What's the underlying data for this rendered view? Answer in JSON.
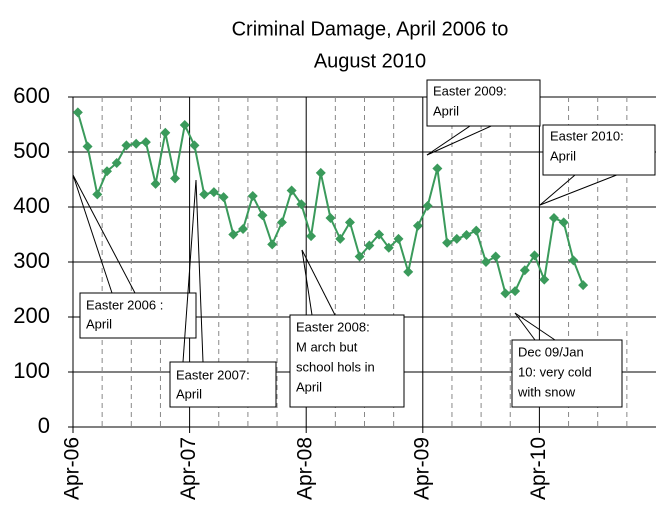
{
  "chart_data": {
    "type": "line",
    "title": [
      "Criminal Damage, April 2006 to",
      "August 2010"
    ],
    "categories": [
      "Apr-06",
      null,
      null,
      null,
      null,
      null,
      null,
      null,
      null,
      null,
      null,
      null,
      "Apr-07",
      null,
      null,
      null,
      null,
      null,
      null,
      null,
      null,
      null,
      null,
      null,
      "Apr-08",
      null,
      null,
      null,
      null,
      null,
      null,
      null,
      null,
      null,
      null,
      null,
      "Apr-09",
      null,
      null,
      null,
      null,
      null,
      null,
      null,
      null,
      null,
      null,
      null,
      "Apr-10",
      null,
      null,
      null,
      null
    ],
    "xlim": [
      0,
      60
    ],
    "series": [
      {
        "color": "#3a9a5b",
        "values": [
          572,
          510,
          423,
          465,
          480,
          512,
          515,
          518,
          442,
          535,
          452,
          549,
          512,
          423,
          427,
          418,
          350,
          360,
          420,
          385,
          332,
          372,
          430,
          405,
          347,
          462,
          380,
          342,
          372,
          310,
          330,
          350,
          326,
          342,
          282,
          366,
          402,
          470,
          335,
          342,
          349,
          357,
          300,
          310,
          243,
          247,
          285,
          312,
          268,
          380,
          372,
          303,
          258
        ]
      }
    ],
    "ylim": [
      0,
      600
    ],
    "yticks": [
      0,
      100,
      200,
      300,
      400,
      500,
      600
    ],
    "grid": true,
    "annotations": [
      {
        "lines": [
          "Easter 2006 :",
          "April"
        ]
      },
      {
        "lines": [
          "Easter 2007:",
          "April"
        ]
      },
      {
        "lines": [
          "Easter 2008:",
          "M arch but",
          "school hols in",
          "April"
        ]
      },
      {
        "lines": [
          "Easter 2009:",
          "April"
        ]
      },
      {
        "lines": [
          "Easter 2010:",
          "April"
        ]
      },
      {
        "lines": [
          "Dec 09/Jan",
          "10: very cold",
          "with snow"
        ]
      }
    ]
  }
}
